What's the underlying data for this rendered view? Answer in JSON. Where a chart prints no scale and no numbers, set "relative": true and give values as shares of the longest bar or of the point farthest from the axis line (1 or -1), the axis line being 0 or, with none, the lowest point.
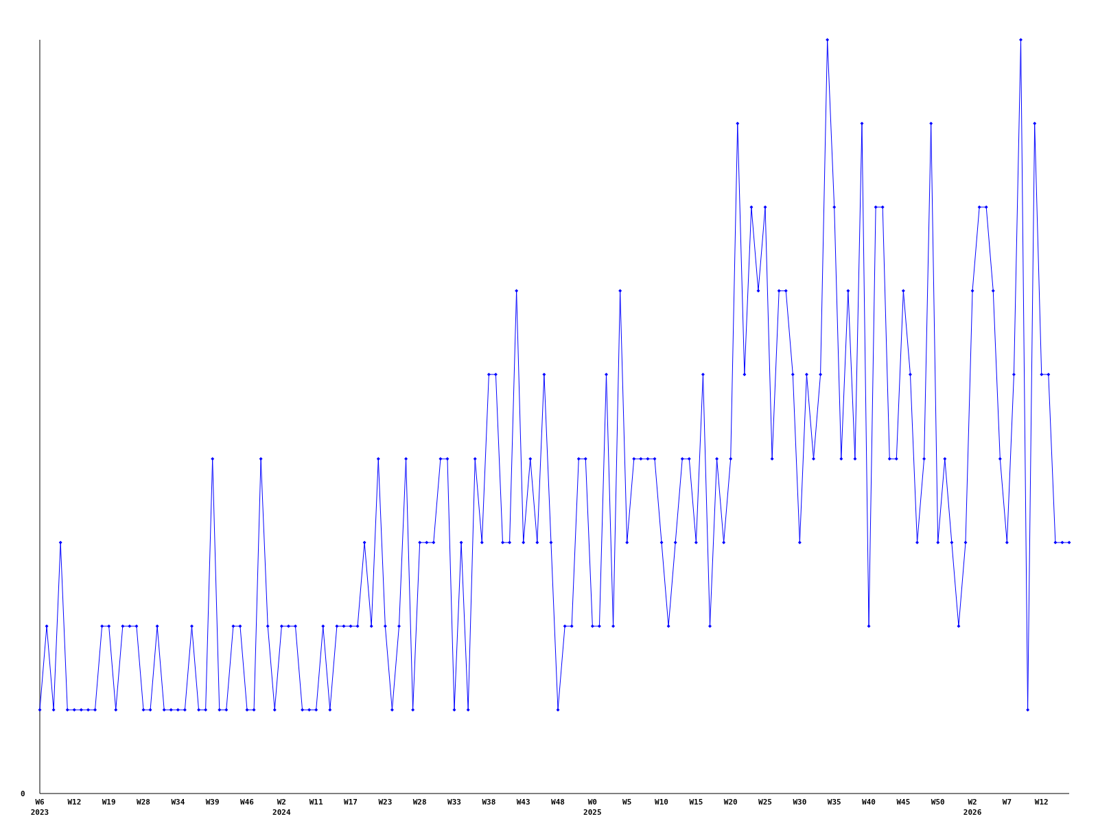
{
  "chart_data": {
    "type": "line",
    "relative": true,
    "marker": "diamond",
    "line_style": "solid",
    "annotations": [
      "0"
    ],
    "categories": [
      "W6\n2023",
      null,
      null,
      null,
      null,
      "W12",
      null,
      null,
      null,
      null,
      "W19",
      null,
      null,
      null,
      null,
      "W28",
      null,
      null,
      null,
      null,
      "W34",
      null,
      null,
      null,
      null,
      "W39",
      null,
      null,
      null,
      null,
      "W46",
      null,
      null,
      null,
      null,
      "W2\n2024",
      null,
      null,
      null,
      null,
      "W11",
      null,
      null,
      null,
      null,
      "W17",
      null,
      null,
      null,
      null,
      "W23",
      null,
      null,
      null,
      null,
      "W28",
      null,
      null,
      null,
      null,
      "W33",
      null,
      null,
      null,
      null,
      "W38",
      null,
      null,
      null,
      null,
      "W43",
      null,
      null,
      null,
      null,
      "W48",
      null,
      null,
      null,
      null,
      "W0\n2025",
      null,
      null,
      null,
      null,
      "W5",
      null,
      null,
      null,
      null,
      "W10",
      null,
      null,
      null,
      null,
      "W15",
      null,
      null,
      null,
      null,
      "W20",
      null,
      null,
      null,
      null,
      "W25",
      null,
      null,
      null,
      null,
      "W30",
      null,
      null,
      null,
      null,
      "W35",
      null,
      null,
      null,
      null,
      "W40",
      null,
      null,
      null,
      null,
      "W45",
      null,
      null,
      null,
      null,
      "W50",
      null,
      null,
      null,
      null,
      "W2\n2026",
      null,
      null,
      null,
      null,
      "W7",
      null,
      null,
      null,
      null,
      "W12",
      null,
      null,
      null,
      null
    ],
    "series": [
      {
        "color": "#0000ff",
        "values": [
          0.111,
          0.222,
          0.111,
          0.333,
          0.111,
          0.111,
          0.111,
          0.111,
          0.111,
          0.222,
          0.222,
          0.111,
          0.222,
          0.222,
          0.222,
          0.111,
          0.111,
          0.222,
          0.111,
          0.111,
          0.111,
          0.111,
          0.222,
          0.111,
          0.111,
          0.444,
          0.111,
          0.111,
          0.222,
          0.222,
          0.111,
          0.111,
          0.444,
          0.222,
          0.111,
          0.222,
          0.222,
          0.222,
          0.111,
          0.111,
          0.111,
          0.222,
          0.111,
          0.222,
          0.222,
          0.222,
          0.222,
          0.333,
          0.222,
          0.444,
          0.222,
          0.111,
          0.222,
          0.444,
          0.111,
          0.333,
          0.333,
          0.333,
          0.444,
          0.444,
          0.111,
          0.333,
          0.111,
          0.444,
          0.333,
          0.556,
          0.556,
          0.333,
          0.333,
          0.667,
          0.333,
          0.444,
          0.333,
          0.556,
          0.333,
          0.111,
          0.222,
          0.222,
          0.444,
          0.444,
          0.222,
          0.222,
          0.556,
          0.222,
          0.667,
          0.333,
          0.444,
          0.444,
          0.444,
          0.444,
          0.333,
          0.222,
          0.333,
          0.444,
          0.444,
          0.333,
          0.556,
          0.222,
          0.444,
          0.333,
          0.444,
          0.889,
          0.556,
          0.778,
          0.667,
          0.778,
          0.444,
          0.667,
          0.667,
          0.556,
          0.333,
          0.556,
          0.444,
          0.556,
          1,
          0.778,
          0.444,
          0.667,
          0.444,
          0.889,
          0.222,
          0.778,
          0.778,
          0.444,
          0.444,
          0.667,
          0.556,
          0.333,
          0.444,
          0.889,
          0.333,
          0.444,
          0.333,
          0.222,
          0.333,
          0.667,
          0.778,
          0.778,
          0.667,
          0.444,
          0.333,
          0.556,
          1,
          0.111,
          0.889,
          0.556,
          0.556,
          0.333,
          0.333,
          0.333
        ]
      }
    ]
  }
}
